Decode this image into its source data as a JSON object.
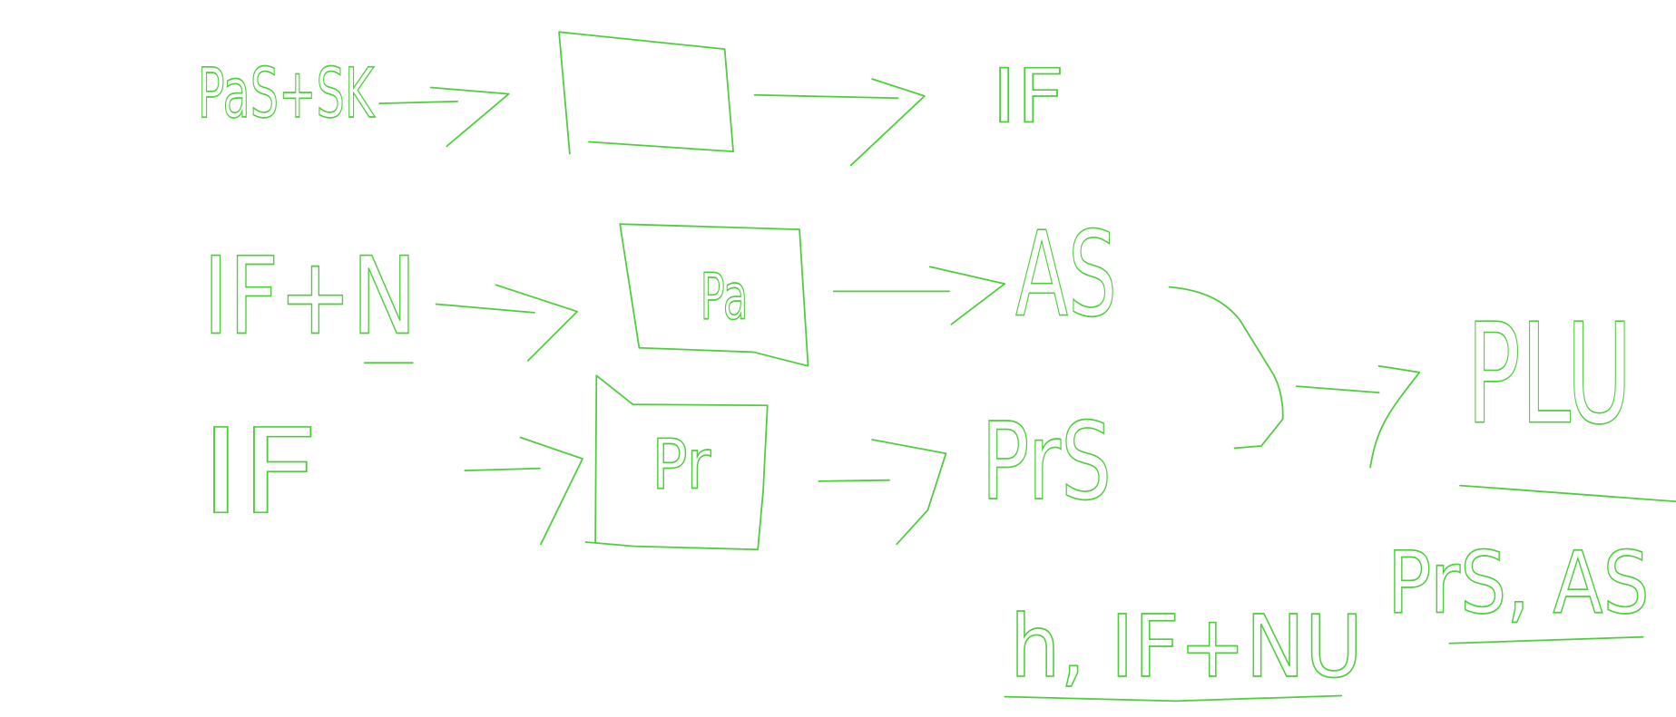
{
  "nodes": [
    {
      "label": "PaS+SK"
    },
    {
      "label": "IF"
    },
    {
      "label": "IF+N"
    },
    {
      "label": "Pa"
    },
    {
      "label": "AS"
    },
    {
      "label": "IF"
    },
    {
      "label": "Pr"
    },
    {
      "label": "PrS"
    },
    {
      "label": "PLU"
    },
    {
      "label": "h, IF+NU"
    },
    {
      "label": "PrS, AS"
    }
  ]
}
